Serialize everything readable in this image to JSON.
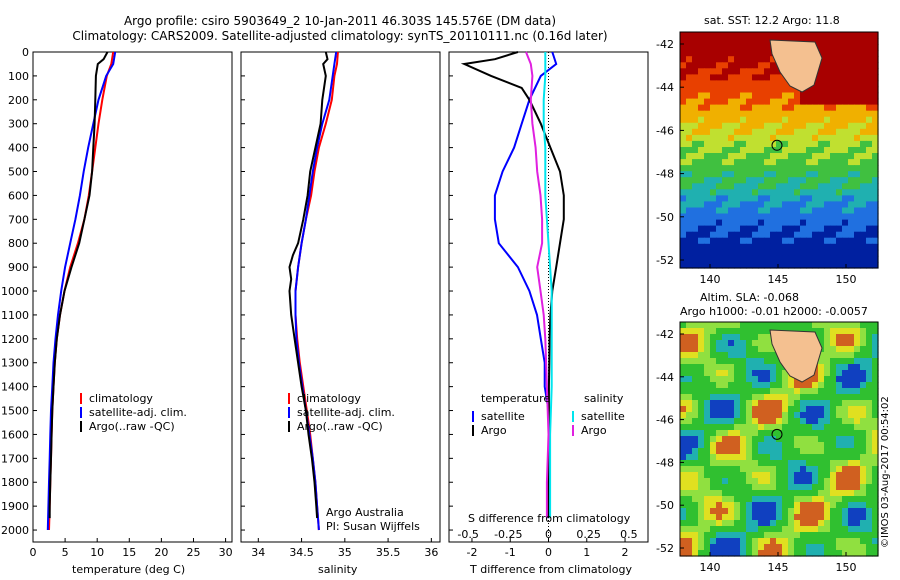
{
  "header": {
    "title1": "Argo profile: csiro 5903649_2 10-Jan-2011 46.303S 145.576E (DM data)",
    "title2": "Climatology: CARS2009. Satellite-adjusted climatology: synTS_20110111.nc (0.16d later)"
  },
  "colors": {
    "climatology": "#ff0000",
    "satellite": "#0000ff",
    "argo": "#000000",
    "sal_satellite": "#00e5ee",
    "sal_argo": "#e020e0",
    "land": "#f4c090"
  },
  "chart_data": [
    {
      "type": "line",
      "id": "temperature",
      "xlabel": "temperature (deg C)",
      "xlim": [
        0,
        31
      ],
      "ylim": [
        0,
        2050
      ],
      "xticks": [
        0,
        5,
        10,
        15,
        20,
        25,
        30
      ],
      "yticks": [
        0,
        100,
        200,
        300,
        400,
        500,
        600,
        700,
        800,
        900,
        1000,
        1100,
        1200,
        1300,
        1400,
        1500,
        1600,
        1700,
        1800,
        1900,
        2000
      ],
      "legend": [
        "climatology",
        "satellite-adj. clim.",
        "Argo(..raw -QC)"
      ],
      "series": [
        {
          "name": "climatology",
          "color": "#ff0000",
          "depth": [
            0,
            50,
            100,
            200,
            300,
            400,
            500,
            600,
            700,
            800,
            900,
            1000,
            1100,
            1200,
            1300,
            1400,
            1500,
            1600,
            1700,
            1800,
            1900,
            2000
          ],
          "values": [
            12.5,
            12.2,
            11.5,
            10.8,
            10.2,
            9.7,
            9.2,
            8.7,
            8.0,
            7.0,
            5.8,
            4.9,
            4.2,
            3.7,
            3.4,
            3.2,
            3.0,
            2.9,
            2.8,
            2.7,
            2.6,
            2.5
          ]
        },
        {
          "name": "satellite-adj. clim.",
          "color": "#0000ff",
          "depth": [
            0,
            50,
            100,
            200,
            300,
            400,
            500,
            600,
            700,
            800,
            900,
            1000,
            1100,
            1200,
            1300,
            1400,
            1500,
            1600,
            1700,
            1800,
            1900,
            2000
          ],
          "values": [
            12.8,
            12.5,
            11.4,
            10.2,
            9.4,
            8.6,
            7.9,
            7.3,
            6.6,
            5.8,
            5.0,
            4.4,
            3.9,
            3.5,
            3.2,
            3.0,
            2.8,
            2.7,
            2.6,
            2.5,
            2.4,
            2.3
          ]
        },
        {
          "name": "Argo(..raw -QC)",
          "color": "#000000",
          "depth": [
            0,
            30,
            50,
            100,
            200,
            300,
            400,
            500,
            600,
            700,
            800,
            900,
            1000,
            1100,
            1200,
            1300,
            1400,
            1500,
            1600,
            1700,
            1800,
            1900,
            1950
          ],
          "values": [
            11.6,
            11.0,
            10.1,
            9.8,
            9.7,
            9.6,
            9.4,
            9.2,
            8.8,
            8.0,
            7.2,
            6.0,
            4.9,
            4.2,
            3.7,
            3.4,
            3.2,
            3.0,
            2.9,
            2.8,
            2.7,
            2.6,
            2.6
          ]
        }
      ]
    },
    {
      "type": "line",
      "id": "salinity",
      "xlabel": "salinity",
      "xlim": [
        33.8,
        36.1
      ],
      "ylim": [
        0,
        2050
      ],
      "xticks": [
        34,
        34.5,
        35,
        35.5,
        36
      ],
      "xticklabels": [
        "34",
        "34.5",
        "35",
        "35.5",
        "36"
      ],
      "legend": [
        "climatology",
        "satellite-adj. clim.",
        "Argo(..raw -QC)"
      ],
      "annotation": [
        "Argo Australia",
        "PI: Susan Wijffels"
      ],
      "series": [
        {
          "name": "climatology",
          "color": "#ff0000",
          "depth": [
            0,
            50,
            100,
            200,
            300,
            400,
            500,
            600,
            700,
            800,
            900,
            1000,
            1100,
            1200,
            1300,
            1400,
            1500,
            1600,
            1700,
            1800,
            1900,
            2000
          ],
          "values": [
            34.92,
            34.91,
            34.88,
            34.85,
            34.78,
            34.7,
            34.65,
            34.61,
            34.55,
            34.5,
            34.46,
            34.43,
            34.43,
            34.45,
            34.48,
            34.52,
            34.56,
            34.6,
            34.63,
            34.66,
            34.68,
            34.7
          ]
        },
        {
          "name": "satellite-adj. clim.",
          "color": "#0000ff",
          "depth": [
            0,
            50,
            100,
            200,
            300,
            400,
            500,
            600,
            700,
            800,
            900,
            1000,
            1100,
            1200,
            1300,
            1400,
            1500,
            1600,
            1700,
            1800,
            1900,
            2000
          ],
          "values": [
            34.9,
            34.88,
            34.86,
            34.82,
            34.74,
            34.68,
            34.63,
            34.59,
            34.55,
            34.5,
            34.46,
            34.43,
            34.43,
            34.44,
            34.47,
            34.51,
            34.55,
            34.59,
            34.63,
            34.66,
            34.68,
            34.7
          ]
        },
        {
          "name": "Argo(..raw -QC)",
          "color": "#000000",
          "depth": [
            0,
            30,
            50,
            100,
            200,
            300,
            400,
            500,
            600,
            700,
            800,
            850,
            900,
            950,
            1000,
            1100,
            1200,
            1300,
            1400,
            1500,
            1600,
            1700,
            1800,
            1900,
            1950
          ],
          "values": [
            34.78,
            34.8,
            34.75,
            34.78,
            34.74,
            34.72,
            34.66,
            34.6,
            34.57,
            34.52,
            34.46,
            34.4,
            34.36,
            34.38,
            34.36,
            34.38,
            34.42,
            34.46,
            34.5,
            34.55,
            34.58,
            34.62,
            34.65,
            34.67,
            34.68
          ]
        }
      ]
    },
    {
      "type": "line",
      "id": "difference",
      "xlabel": "T difference from climatology",
      "xlabel2": "S difference from climatology",
      "xlim": [
        -2.6,
        2.6
      ],
      "ylim": [
        0,
        2050
      ],
      "xticks": [
        -2,
        -1,
        0,
        1,
        2
      ],
      "xticklabels": [
        "-2",
        "-1",
        "0",
        "1",
        "2"
      ],
      "sticklabels": [
        "-0.5",
        "-0.25",
        "0",
        "0.25",
        "0.5"
      ],
      "legend_temperature": [
        "temperature",
        "satellite",
        "Argo"
      ],
      "legend_salinity": [
        "salinity",
        "satellite",
        "Argo"
      ],
      "series": [
        {
          "name": "temperature satellite",
          "color": "#0000ff",
          "depth": [
            0,
            50,
            100,
            200,
            300,
            400,
            500,
            600,
            700,
            800,
            900,
            1000,
            1100,
            1200,
            1300,
            1400,
            1500,
            1600,
            1700,
            1800,
            1900,
            1950
          ],
          "values": [
            0.1,
            0.2,
            -0.2,
            -0.5,
            -0.7,
            -0.9,
            -1.2,
            -1.4,
            -1.4,
            -1.3,
            -0.8,
            -0.5,
            -0.3,
            -0.2,
            -0.1,
            -0.1,
            0,
            0,
            0,
            0,
            0,
            0
          ]
        },
        {
          "name": "temperature Argo",
          "color": "#000000",
          "depth": [
            0,
            30,
            50,
            100,
            150,
            200,
            300,
            400,
            500,
            600,
            700,
            800,
            900,
            1000,
            1100,
            1200,
            1300,
            1400,
            1500,
            1600,
            1700,
            1800,
            1900,
            1950
          ],
          "values": [
            -0.8,
            -1.4,
            -2.2,
            -1.5,
            -0.7,
            -0.5,
            -0.2,
            0.05,
            0.3,
            0.4,
            0.4,
            0.3,
            0.2,
            0.1,
            0.05,
            0.03,
            0.02,
            0.01,
            0.01,
            0,
            0,
            0,
            0,
            0
          ]
        },
        {
          "name": "salinity satellite",
          "color": "#00e5ee",
          "depth": [
            0,
            100,
            200,
            300,
            400,
            500,
            600,
            700,
            800,
            900,
            1000,
            1200,
            1400,
            1600,
            1800,
            1950
          ],
          "values": [
            -0.02,
            -0.02,
            -0.03,
            -0.03,
            -0.02,
            -0.02,
            -0.02,
            -0.01,
            0,
            0.01,
            0.02,
            0.02,
            0.02,
            0.01,
            0.01,
            0.01
          ]
        },
        {
          "name": "salinity Argo",
          "color": "#e020e0",
          "depth": [
            0,
            50,
            100,
            200,
            300,
            400,
            500,
            600,
            700,
            800,
            900,
            1000,
            1100,
            1200,
            1400,
            1600,
            1800,
            1950
          ],
          "values": [
            -0.14,
            -0.11,
            -0.1,
            -0.11,
            -0.1,
            -0.08,
            -0.07,
            -0.05,
            -0.04,
            -0.04,
            -0.07,
            -0.05,
            -0.03,
            -0.02,
            -0.01,
            0,
            -0.01,
            -0.01
          ]
        }
      ]
    }
  ],
  "maps": {
    "sst": {
      "title": "sat. SST: 12.2 Argo: 11.8",
      "yticks": [
        "-42",
        "-44",
        "-46",
        "-48",
        "-50",
        "-52"
      ],
      "xticks": [
        "140",
        "145",
        "150"
      ]
    },
    "sla": {
      "title1": "Altim. SLA: -0.068",
      "title2": "Argo h1000: -0.01 h2000: -0.0057",
      "yticks": [
        "-42",
        "-44",
        "-46",
        "-48",
        "-50",
        "-52"
      ],
      "xticks": [
        "140",
        "145",
        "150"
      ]
    },
    "credit": "©IMOS 03-Aug-2017 00:54:02"
  }
}
